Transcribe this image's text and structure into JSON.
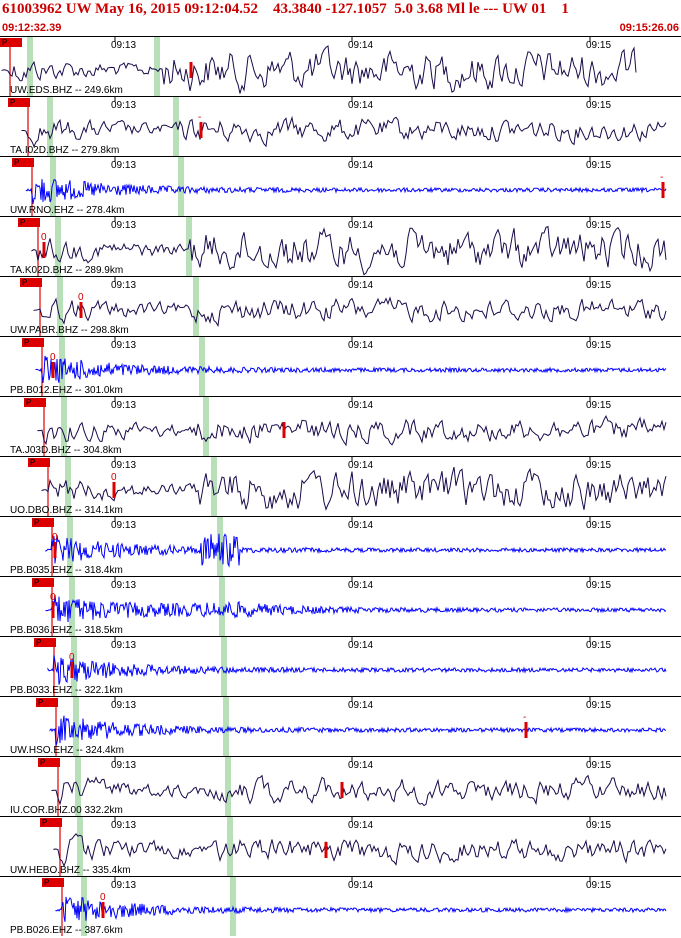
{
  "header": {
    "title": "61003962 UW May 16, 2015 09:12:04.52    43.3840 -127.1057  5.0 3.68 Ml le --- UW 01    1",
    "start_time": "09:12:32.39",
    "end_time": "09:15:26.06"
  },
  "time_axis": {
    "tick_labels": [
      "09:13",
      "09:14",
      "09:15"
    ]
  },
  "colors": {
    "short_period_trace": "#0000ff",
    "broadband_trace": "#1a0a4a",
    "pick": "#dd0000",
    "phase_band": "#b8e0b8",
    "flag_bg": "#dd0000"
  },
  "traces": [
    {
      "label": "UW.EDS.BHZ -- 249.6km",
      "flag": "P",
      "pick_label": "",
      "type": "broadband"
    },
    {
      "label": "TA.I02D.BHZ -- 279.8km",
      "flag": "P",
      "pick_label": "-",
      "type": "broadband"
    },
    {
      "label": "UW.RNO.EHZ -- 278.4km",
      "flag": "P",
      "pick_label": "-",
      "type": "short"
    },
    {
      "label": "TA.K02D.BHZ -- 289.9km",
      "flag": "P",
      "pick_label": "0",
      "type": "broadband"
    },
    {
      "label": "UW.PABR.BHZ -- 298.8km",
      "flag": "P",
      "pick_label": "0",
      "type": "broadband"
    },
    {
      "label": "PB.B012.EHZ -- 301.0km",
      "flag": "P",
      "pick_label": "0",
      "type": "short"
    },
    {
      "label": "TA.J03D.BHZ -- 304.8km",
      "flag": "P",
      "pick_label": "",
      "type": "broadband"
    },
    {
      "label": "UO.DBO.BHZ -- 314.1km",
      "flag": "P",
      "pick_label": "0",
      "type": "broadband"
    },
    {
      "label": "PB.B035.EHZ -- 318.4km",
      "flag": "P",
      "pick_label": "0",
      "type": "short"
    },
    {
      "label": "PB.B036.EHZ -- 318.5km",
      "flag": "P",
      "pick_label": "0",
      "type": "short"
    },
    {
      "label": "PB.B033.EHZ -- 322.1km",
      "flag": "P",
      "pick_label": "0",
      "type": "short"
    },
    {
      "label": "UW.HSO.EHZ -- 324.4km",
      "flag": "P",
      "pick_label": "-",
      "type": "short"
    },
    {
      "label": "IU.COR.BHZ.00 332.2km",
      "flag": "P",
      "pick_label": "",
      "type": "broadband"
    },
    {
      "label": "UW.HEBO.BHZ -- 335.4km",
      "flag": "P",
      "pick_label": "",
      "type": "broadband"
    },
    {
      "label": "PB.B026.EHZ -- 387.6km",
      "flag": "P",
      "pick_label": "0",
      "type": "short"
    }
  ]
}
